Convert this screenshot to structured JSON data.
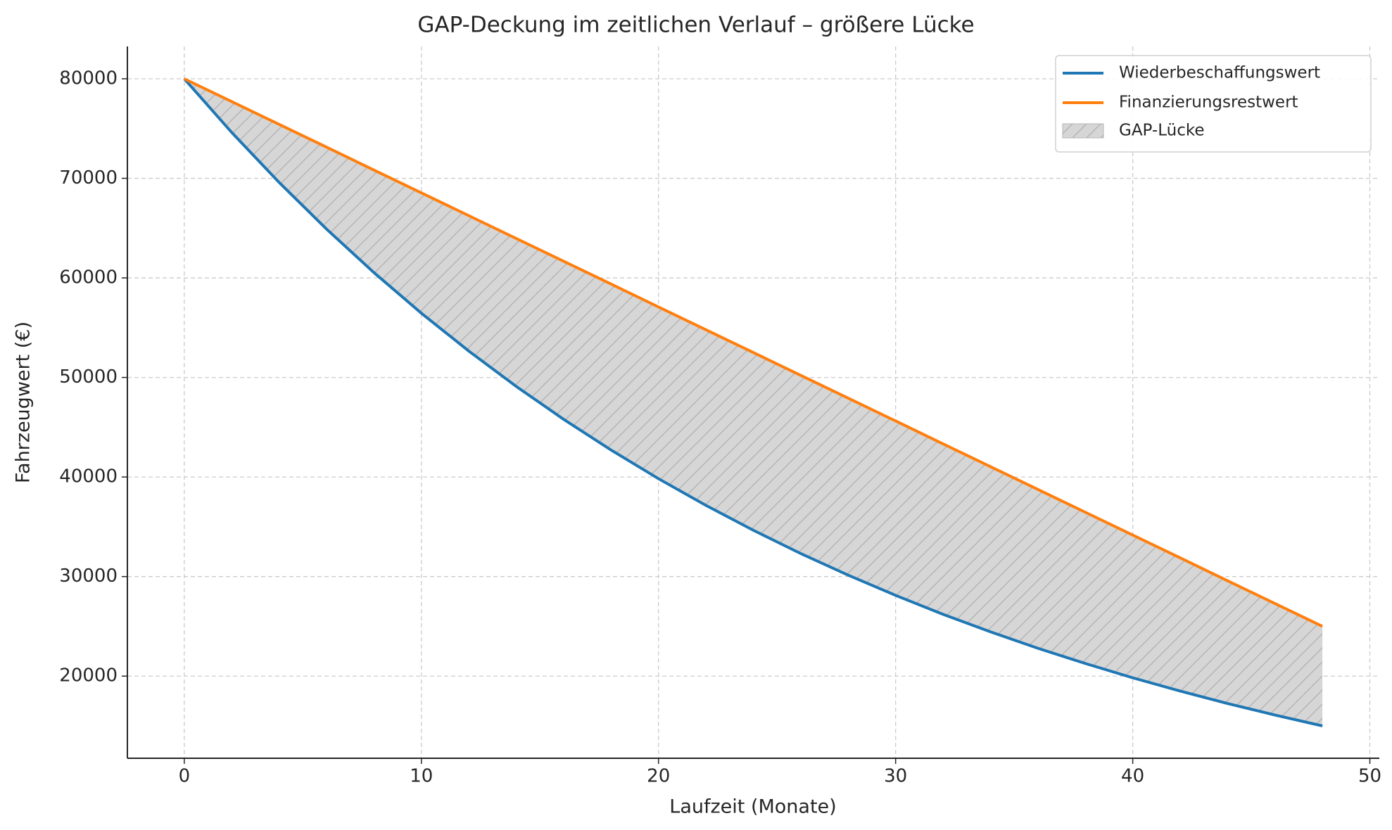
{
  "chart_data": {
    "type": "line",
    "title": "GAP-Deckung im zeitlichen Verlauf – größere Lücke",
    "x_label": "Laufzeit (Monate)",
    "y_label": "Fahrzeugwert (€)",
    "x": [
      0,
      2,
      4,
      6,
      8,
      10,
      12,
      14,
      16,
      18,
      20,
      22,
      24,
      26,
      28,
      30,
      32,
      34,
      36,
      38,
      40,
      42,
      44,
      46,
      48
    ],
    "series": [
      {
        "name": "Wiederbeschaffungswert",
        "color": "#1f77b4",
        "values": [
          80000,
          74610,
          69590,
          64900,
          60530,
          56450,
          52650,
          49100,
          45790,
          42710,
          39830,
          37150,
          34650,
          32310,
          30140,
          28110,
          26210,
          24450,
          22800,
          21270,
          19830,
          18500,
          17250,
          16090,
          15000
        ]
      },
      {
        "name": "Finanzierungsrestwert",
        "color": "#ff7f0e",
        "values": [
          80000,
          77710,
          75420,
          73130,
          70830,
          68540,
          66250,
          63960,
          61670,
          59380,
          57080,
          54790,
          52500,
          50210,
          47920,
          45630,
          43330,
          41040,
          38750,
          36460,
          34170,
          31880,
          29580,
          27290,
          25000
        ]
      }
    ],
    "fill": {
      "name": "GAP-Lücke",
      "color": "#d6d6d6",
      "hatch_color": "#b5b5b5"
    },
    "xlim": [
      -2.4,
      50.4
    ],
    "xticks": [
      0,
      10,
      20,
      30,
      40,
      50
    ],
    "ylim": [
      11750,
      83250
    ],
    "yticks": [
      20000,
      30000,
      40000,
      50000,
      60000,
      70000,
      80000
    ],
    "grid": true,
    "legend": "upper right"
  }
}
